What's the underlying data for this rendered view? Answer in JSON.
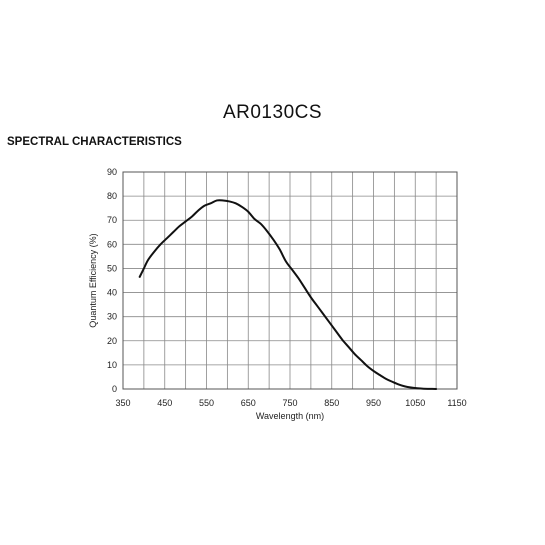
{
  "header": {
    "product": "AR0130CS",
    "section": "SPECTRAL CHARACTERISTICS"
  },
  "chart_data": {
    "type": "line",
    "title": "",
    "xlabel": "Wavelength (nm)",
    "ylabel": "Quantum Efficiency (%)",
    "xlim": [
      350,
      1150
    ],
    "ylim": [
      0,
      90
    ],
    "xticks": [
      350,
      450,
      550,
      650,
      750,
      850,
      950,
      1050,
      1150
    ],
    "yticks": [
      0,
      10,
      20,
      30,
      40,
      50,
      60,
      70,
      80,
      90
    ],
    "xtick_labels": [
      "350",
      "450",
      "550",
      "650",
      "750",
      "850",
      "950",
      "1050",
      "1150"
    ],
    "ytick_labels": [
      "0",
      "10",
      "20",
      "30",
      "40",
      "50",
      "60",
      "70",
      "80",
      "90"
    ],
    "grid": true,
    "series": [
      {
        "color": "#111111",
        "x": [
          390,
          400,
          410,
          425,
          440,
          455,
          470,
          485,
          500,
          515,
          530,
          545,
          560,
          575,
          590,
          605,
          620,
          635,
          650,
          665,
          680,
          695,
          710,
          725,
          740,
          755,
          770,
          785,
          800,
          815,
          830,
          845,
          860,
          875,
          890,
          905,
          920,
          935,
          950,
          965,
          980,
          995,
          1010,
          1025,
          1040,
          1055,
          1070,
          1085,
          1100
        ],
        "y": [
          46.5,
          50,
          53.5,
          57,
          60,
          62.5,
          65,
          67.5,
          69.5,
          71.5,
          74,
          76,
          77,
          78.2,
          78.2,
          77.8,
          77,
          75.5,
          73.5,
          70.5,
          68.5,
          65.5,
          62,
          58,
          53,
          49.5,
          46,
          42,
          38,
          34.5,
          31,
          27.5,
          24,
          20.5,
          17.5,
          14.5,
          12,
          9.5,
          7.5,
          5.8,
          4.2,
          3,
          1.9,
          1.1,
          0.6,
          0.3,
          0.1,
          0.05,
          0
        ]
      }
    ]
  }
}
